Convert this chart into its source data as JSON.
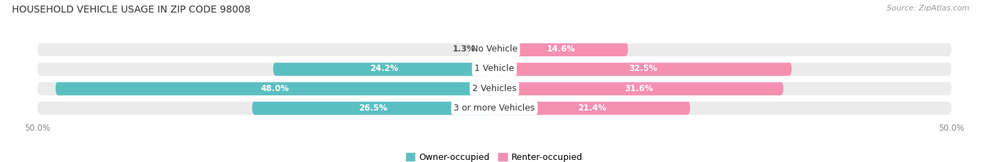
{
  "title": "HOUSEHOLD VEHICLE USAGE IN ZIP CODE 98008",
  "source": "Source: ZipAtlas.com",
  "categories": [
    "No Vehicle",
    "1 Vehicle",
    "2 Vehicles",
    "3 or more Vehicles"
  ],
  "owner_values": [
    1.3,
    24.2,
    48.0,
    26.5
  ],
  "renter_values": [
    14.6,
    32.5,
    31.6,
    21.4
  ],
  "owner_color": "#5bbfc2",
  "renter_color": "#f590b0",
  "axis_max": 50.0,
  "axis_min": -50.0,
  "background_color": "#ffffff",
  "bar_bg_color": "#ebebeb",
  "bar_sep_color": "#ffffff",
  "label_color_white": "#ffffff",
  "label_color_dark": "#555555",
  "title_fontsize": 10,
  "tick_fontsize": 8.5,
  "legend_fontsize": 9,
  "source_fontsize": 8,
  "bar_height": 0.72,
  "category_fontsize": 9,
  "value_fontsize": 8.5
}
